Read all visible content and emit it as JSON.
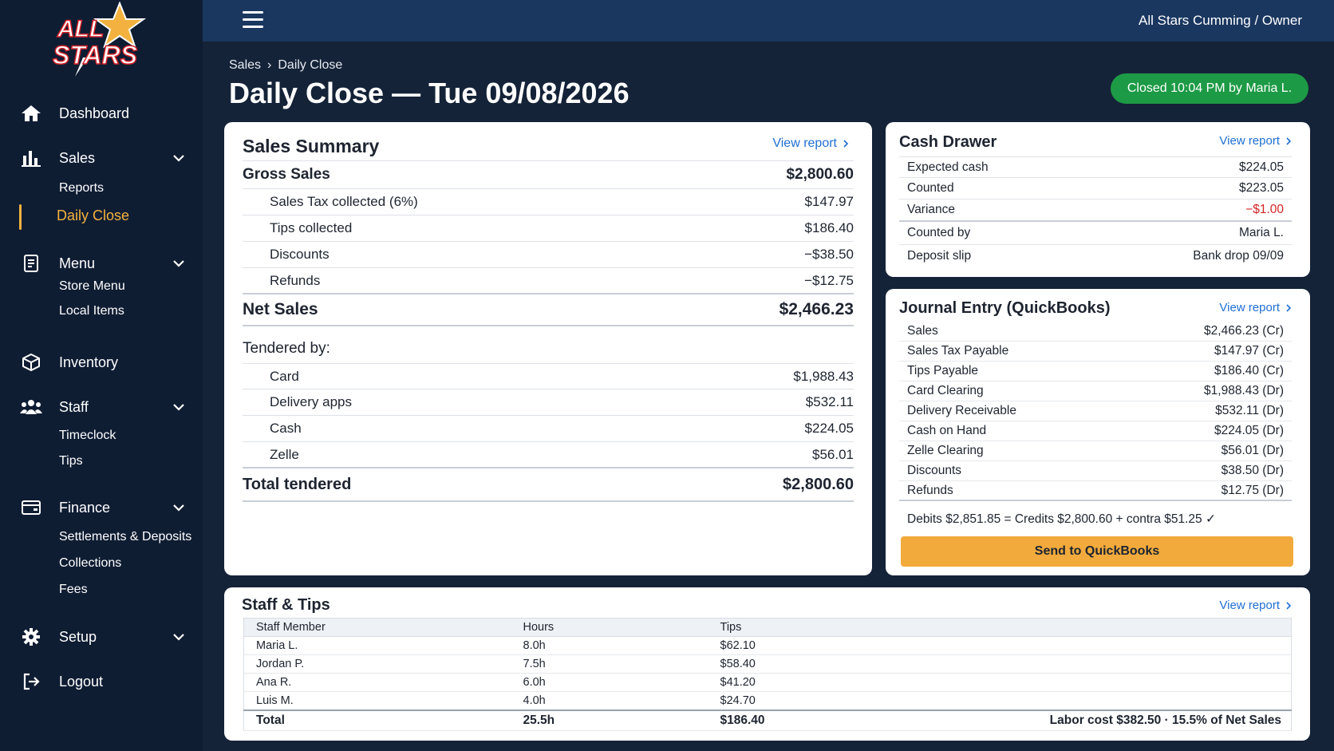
{
  "app": {
    "brand_logo_text": "ALL STARS",
    "org_label": "All Stars Cumming / Owner"
  },
  "sidebar": {
    "items": [
      {
        "label": "Dashboard",
        "icon": "home-icon"
      },
      {
        "label": "Sales",
        "icon": "bar-chart-icon",
        "expanded": true,
        "children": [
          {
            "label": "Reports"
          },
          {
            "label": "Daily Close",
            "active": true
          }
        ]
      },
      {
        "label": "Menu",
        "icon": "menu-book-icon",
        "expanded": true,
        "children": [
          {
            "label": "Store Menu"
          },
          {
            "label": "Local Items"
          }
        ]
      },
      {
        "label": "Inventory",
        "icon": "box-icon"
      },
      {
        "label": "Staff",
        "icon": "people-icon",
        "expanded": true,
        "children": [
          {
            "label": "Timeclock"
          },
          {
            "label": "Tips"
          }
        ]
      },
      {
        "label": "Finance",
        "icon": "wallet-icon",
        "expanded": true,
        "children": [
          {
            "label": "Settlements & Deposits"
          },
          {
            "label": "Collections"
          },
          {
            "label": "Fees"
          }
        ]
      },
      {
        "label": "Setup",
        "icon": "gear-icon",
        "expanded": false
      },
      {
        "label": "Logout",
        "icon": "logout-icon"
      }
    ]
  },
  "header": {
    "breadcrumb": [
      "Sales",
      "Daily Close"
    ],
    "title": "Daily Close — Tue 09/08/2026",
    "status_badge": "Closed 10:04 PM by Maria L."
  },
  "sales_summary": {
    "title": "Sales Summary",
    "view_report": "View report",
    "gross_label": "Gross Sales",
    "gross_value": "$2,800.60",
    "lines": [
      {
        "label": "Sales Tax collected (6%)",
        "value": "$147.97"
      },
      {
        "label": "Tips collected",
        "value": "$186.40"
      },
      {
        "label": "Discounts",
        "value": "−$38.50"
      },
      {
        "label": "Refunds",
        "value": "−$12.75"
      }
    ],
    "net_label": "Net Sales",
    "net_value": "$2,466.23",
    "tendered_label": "Tendered by:",
    "tenders": [
      {
        "label": "Card",
        "value": "$1,988.43"
      },
      {
        "label": "Delivery apps",
        "value": "$532.11"
      },
      {
        "label": "Cash",
        "value": "$224.05"
      },
      {
        "label": "Zelle",
        "value": "$56.01"
      }
    ],
    "total_label": "Total tendered",
    "total_value": "$2,800.60"
  },
  "cash_drawer": {
    "title": "Cash Drawer",
    "view_report": "View report",
    "rows": [
      {
        "label": "Expected cash",
        "value": "$224.05"
      },
      {
        "label": "Counted",
        "value": "$223.05"
      },
      {
        "label": "Variance",
        "value": "−$1.00"
      },
      {
        "label": "Counted by",
        "value": "Maria L."
      },
      {
        "label": "Deposit slip",
        "value": "Bank drop 09/09"
      }
    ]
  },
  "journal": {
    "title": "Journal Entry (QuickBooks)",
    "view_report": "View report",
    "rows": [
      {
        "label": "Sales",
        "value": "$2,466.23 (Cr)"
      },
      {
        "label": "Sales Tax Payable",
        "value": "$147.97 (Cr)"
      },
      {
        "label": "Tips Payable",
        "value": "$186.40 (Cr)"
      },
      {
        "label": "Card Clearing",
        "value": "$1,988.43 (Dr)"
      },
      {
        "label": "Delivery Receivable",
        "value": "$532.11 (Dr)"
      },
      {
        "label": "Cash on Hand",
        "value": "$224.05 (Dr)"
      },
      {
        "label": "Zelle Clearing",
        "value": "$56.01 (Dr)"
      },
      {
        "label": "Discounts",
        "value": "$38.50 (Dr)"
      },
      {
        "label": "Refunds",
        "value": "$12.75 (Dr)"
      }
    ],
    "balance": "Debits $2,851.85 = Credits $2,800.60 + contra $51.25 ✓",
    "send_button": "Send to QuickBooks"
  },
  "staff_tips": {
    "title": "Staff & Tips",
    "view_report": "View report",
    "columns": [
      "Staff Member",
      "Hours",
      "Tips"
    ],
    "rows": [
      [
        "Maria L.",
        "8.0h",
        "$62.10"
      ],
      [
        "Jordan P.",
        "7.5h",
        "$58.40"
      ],
      [
        "Ana R.",
        "6.0h",
        "$41.20"
      ],
      [
        "Luis M.",
        "4.0h",
        "$24.70"
      ]
    ],
    "total": [
      "Total",
      "25.5h",
      "$186.40"
    ],
    "labor_note": "Labor cost $382.50 · 15.5% of Net Sales"
  },
  "colors": {
    "sidebar_bg": "#0f1d33",
    "topbar_bg": "#1a3760",
    "accent": "#f3b23f",
    "status_green": "#1d9a45",
    "link_blue": "#1f6fd1",
    "negative_red": "#d32626",
    "button_orange": "#f2aa3c"
  }
}
